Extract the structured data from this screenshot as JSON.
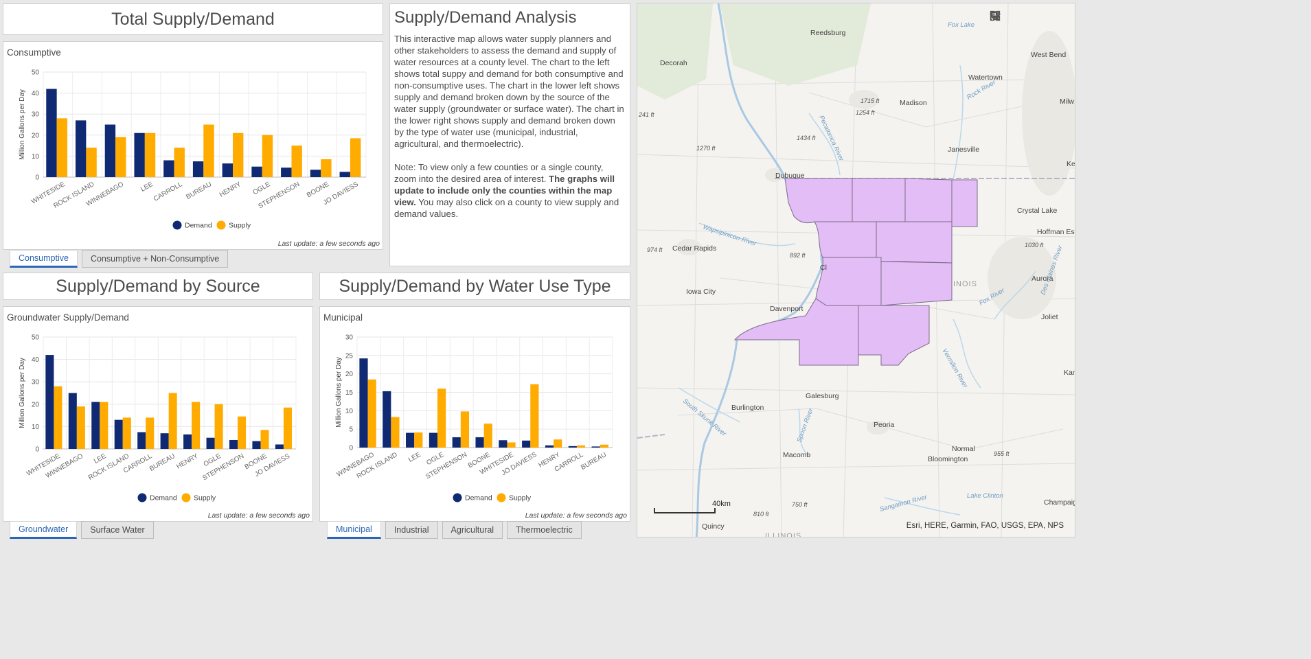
{
  "total": {
    "title": "Total Supply/Demand",
    "chart_title": "Consumptive",
    "tabs": [
      "Consumptive",
      "Consumptive + Non-Consumptive"
    ],
    "last_update": "Last update: a few seconds ago"
  },
  "analysis": {
    "title": "Supply/Demand Analysis",
    "para1": "This interactive map allows water supply planners and other stakeholders to assess the demand and supply of water resources at a county level. The chart to the left shows total suppy and demand for both consumptive and non-consumptive uses. The chart in the lower left shows supply and demand broken down by the source of the water supply (groundwater or surface water). The chart in the lower right shows supply and demand broken down by the type of water use (municipal, industrial, agricultural, and thermoelectric).",
    "para2_a": "Note: To view only a few counties or a single county, zoom into the desired area of interest. ",
    "para2_b": "The graphs will update to include only the counties within the map view.",
    "para2_c": " You may also click on a county to view supply and demand values."
  },
  "source": {
    "title": "Supply/Demand by Source",
    "chart_title": "Groundwater Supply/Demand",
    "tabs": [
      "Groundwater",
      "Surface Water"
    ],
    "last_update": "Last update: a few seconds ago"
  },
  "wateruse": {
    "title": "Supply/Demand by Water Use Type",
    "chart_title": "Municipal",
    "tabs": [
      "Municipal",
      "Industrial",
      "Agricultural",
      "Thermoelectric"
    ],
    "last_update": "Last update: a few seconds ago"
  },
  "colors": {
    "demand": "#0f2a72",
    "supply": "#ffab00",
    "county_fill": "#e3bdf5",
    "tab_accent": "#2b65b5"
  },
  "chart_data": [
    {
      "type": "bar",
      "title": "Consumptive",
      "ylabel": "Million Gallons per Day",
      "ylim": [
        0,
        50
      ],
      "yticks": [
        0,
        10,
        20,
        30,
        40,
        50
      ],
      "categories": [
        "WHITESIDE",
        "ROCK ISLAND",
        "WINNEBAGO",
        "LEE",
        "CARROLL",
        "BUREAU",
        "HENRY",
        "OGLE",
        "STEPHENSON",
        "BOONE",
        "JO DAVIESS"
      ],
      "series": [
        {
          "name": "Demand",
          "values": [
            42,
            27,
            25,
            21,
            8,
            7.5,
            6.5,
            5,
            4.5,
            3.5,
            2.5
          ]
        },
        {
          "name": "Supply",
          "values": [
            28,
            14,
            19,
            21,
            14,
            25,
            21,
            20,
            15,
            8.5,
            18.5
          ]
        }
      ],
      "legend": "bottom"
    },
    {
      "type": "bar",
      "title": "Groundwater Supply/Demand",
      "ylabel": "Million Gallons per Day",
      "ylim": [
        0,
        50
      ],
      "yticks": [
        0,
        10,
        20,
        30,
        40,
        50
      ],
      "categories": [
        "WHITESIDE",
        "WINNEBAGO",
        "LEE",
        "ROCK ISLAND",
        "CARROLL",
        "BUREAU",
        "HENRY",
        "OGLE",
        "STEPHENSON",
        "BOONE",
        "JO DAVIESS"
      ],
      "series": [
        {
          "name": "Demand",
          "values": [
            42,
            25,
            21,
            13,
            7.5,
            7,
            6.5,
            5,
            4,
            3.5,
            2
          ]
        },
        {
          "name": "Supply",
          "values": [
            28,
            19,
            21,
            14,
            14,
            25,
            21,
            20,
            14.5,
            8.5,
            18.5
          ]
        }
      ],
      "legend": "bottom"
    },
    {
      "type": "bar",
      "title": "Municipal",
      "ylabel": "Million Gallons per Day",
      "ylim": [
        0,
        30
      ],
      "yticks": [
        0,
        5,
        10,
        15,
        20,
        25,
        30
      ],
      "categories": [
        "WINNEBAGO",
        "ROCK ISLAND",
        "LEE",
        "OGLE",
        "STEPHENSON",
        "BOONE",
        "WHITESIDE",
        "JO DAVIESS",
        "HENRY",
        "CARROLL",
        "BUREAU"
      ],
      "series": [
        {
          "name": "Demand",
          "values": [
            24.2,
            15.3,
            4,
            4,
            2.8,
            2.8,
            2,
            1.9,
            0.6,
            0.4,
            0.3
          ]
        },
        {
          "name": "Supply",
          "values": [
            18.5,
            8.3,
            4.1,
            16,
            9.8,
            6.5,
            1.4,
            17.2,
            2.2,
            0.6,
            0.8
          ]
        }
      ],
      "legend": "bottom"
    }
  ],
  "map": {
    "place_labels": [
      "Reedsburg",
      "Decorah",
      "Madison",
      "Watertown",
      "West Bend",
      "Milw",
      "Janesville",
      "Dubuque",
      "Crystal Lake",
      "Hoffman Estates",
      "Cedar Rapids",
      "Iowa City",
      "Davenport",
      "Aurora",
      "Joliet",
      "Galesburg",
      "Burlington",
      "Peoria",
      "Normal",
      "Bloomington",
      "Macomb",
      "Champaig",
      "Quincy",
      "Kan",
      "Ke",
      "Cl",
      "INOIS",
      "ILLINOIS"
    ],
    "elevation_labels": [
      "1715 ft",
      "1254 ft",
      "1434 ft",
      "1270 ft",
      "241 ft",
      "974 ft",
      "892 ft",
      "1030 ft",
      "955 ft",
      "810 ft",
      "750 ft"
    ],
    "water_labels": [
      "Fox Lake",
      "Rock River",
      "Pecatonica River",
      "Wapsipinicon River",
      "Fox River",
      "Des Plaines River",
      "Vermilion River",
      "South Skunk River",
      "Spoon River",
      "Sangamon River",
      "Lake Clinton"
    ],
    "scale_label": "40km",
    "attribution": "Esri, HERE, Garmin, FAO, USGS, EPA, NPS",
    "zoom_in": "+",
    "zoom_out": "−"
  },
  "legend": {
    "demand": "Demand",
    "supply": "Supply"
  }
}
